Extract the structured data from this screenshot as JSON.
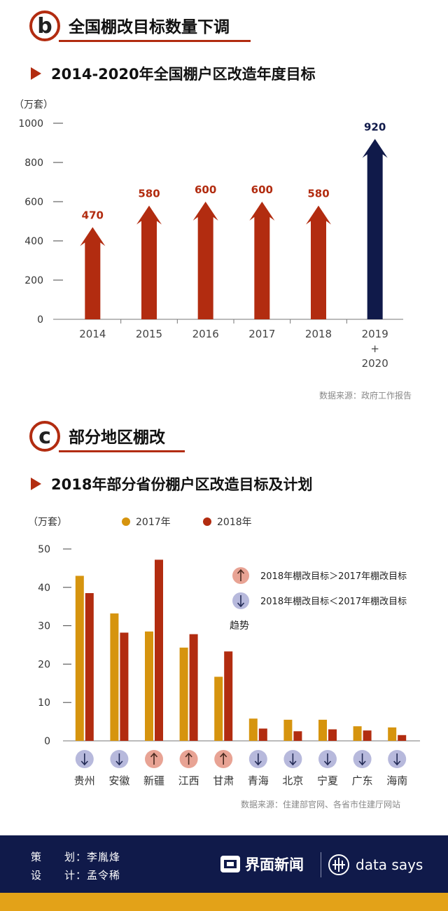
{
  "section_b": {
    "letter": "b",
    "title": "全国棚改目标数量下调",
    "subtitle": "2014-2020年全国棚户区改造年度目标",
    "unit": "（万套）",
    "source": "数据来源：政府工作报告"
  },
  "section_c": {
    "letter": "c",
    "title": "部分地区棚改",
    "subtitle": "2018年部分省份棚户区改造目标及计划",
    "unit": "（万套）",
    "legend_2017": "2017年",
    "legend_2018": "2018年",
    "trend_up_text": "2018年棚改目标＞2017年棚改目标",
    "trend_down_text": "2018年棚改目标＜2017年棚改目标",
    "trend_label": "趋势",
    "source": "数据来源：住建部官网、各省市住建厅网站"
  },
  "watermark": {
    "logo_text": "界面新闻",
    "data_says": "data says"
  },
  "footer": {
    "planner_label": "策　　划：",
    "planner": "李胤烽",
    "designer_label": "设　　计：",
    "designer": "孟令稀",
    "brand_cn": "界面新闻",
    "brand_en": "data says"
  },
  "colors": {
    "accent": "#b22c10",
    "navy": "#101a4a",
    "gold": "#e3a218",
    "bar_2017": "#d6940e",
    "bar_2018": "#b22c10",
    "trend_up": "#e8a394",
    "trend_down": "#b7b9dc"
  },
  "chart_data": [
    {
      "type": "bar",
      "categories": [
        "2014",
        "2015",
        "2016",
        "2017",
        "2018",
        "2019\n+\n2020"
      ],
      "values": [
        470,
        580,
        600,
        600,
        580,
        920
      ],
      "labels": [
        "470",
        "580",
        "600",
        "600",
        "580",
        "920"
      ],
      "ylim": [
        0,
        1000
      ],
      "yticks": [
        0,
        200,
        400,
        600,
        800,
        1000
      ],
      "ylabel": "（万套）",
      "style": "arrow",
      "bar_colors": [
        "#b22c10",
        "#b22c10",
        "#b22c10",
        "#b22c10",
        "#b22c10",
        "#101a4a"
      ]
    },
    {
      "type": "bar",
      "categories": [
        "贵州",
        "安徽",
        "新疆",
        "江西",
        "甘肃",
        "青海",
        "北京",
        "宁夏",
        "广东",
        "海南"
      ],
      "series": [
        {
          "name": "2017年",
          "values": [
            43,
            33.2,
            28.5,
            24.3,
            16.7,
            5.8,
            5.5,
            5.5,
            3.8,
            3.5
          ]
        },
        {
          "name": "2018年",
          "values": [
            38.5,
            28.2,
            47.2,
            27.8,
            23.3,
            3.2,
            2.5,
            3,
            2.7,
            1.5
          ]
        }
      ],
      "trend": [
        "down",
        "down",
        "up",
        "up",
        "up",
        "down",
        "down",
        "down",
        "down",
        "down"
      ],
      "ylim": [
        0,
        50
      ],
      "yticks": [
        0,
        10,
        20,
        30,
        40,
        50
      ],
      "ylabel": "（万套）"
    }
  ]
}
